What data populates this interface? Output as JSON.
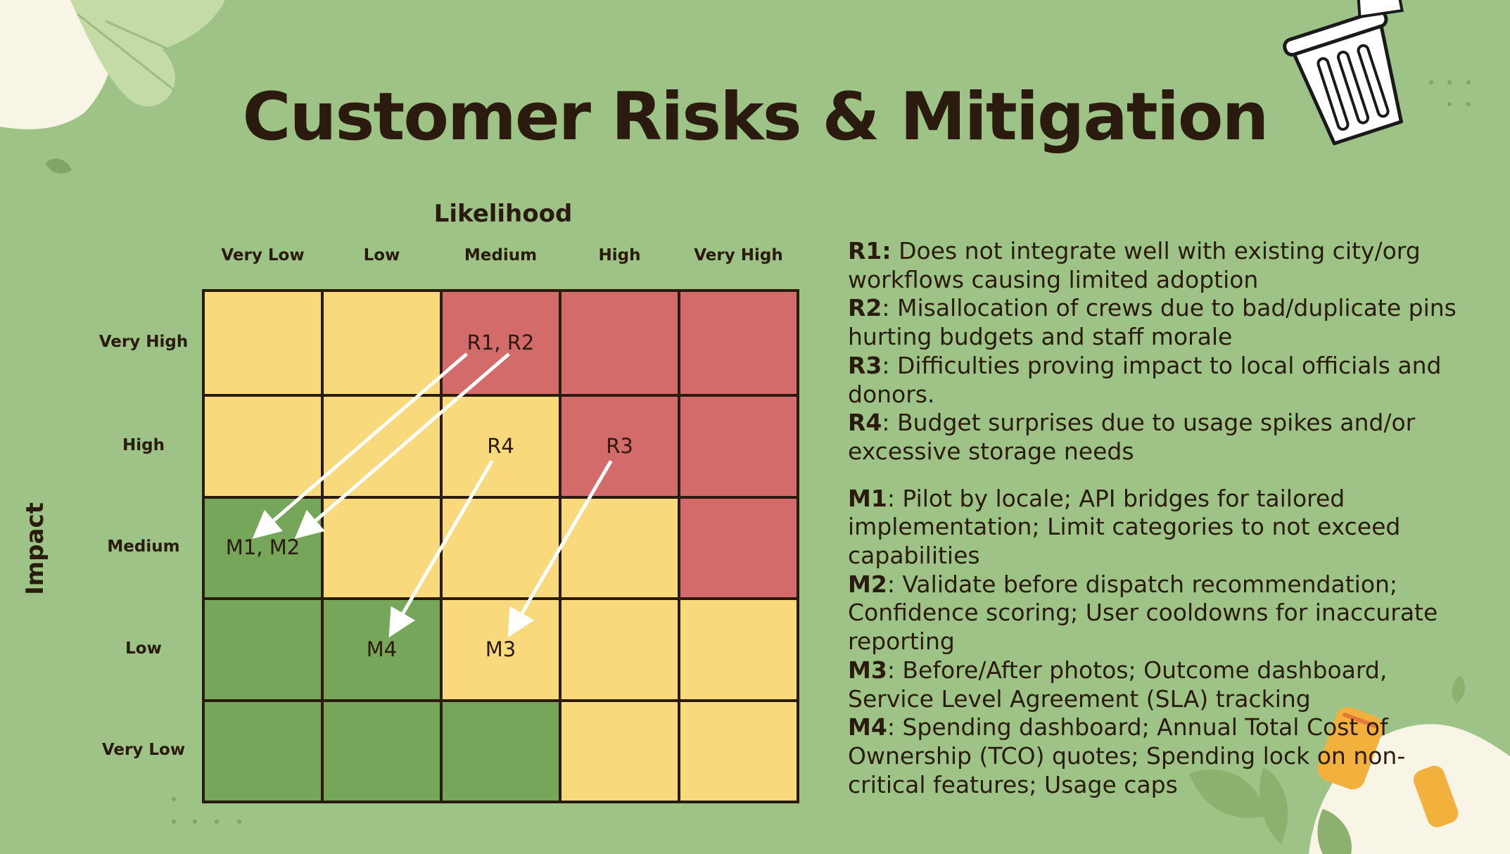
{
  "title": "Customer Risks & Mitigation",
  "matrix": {
    "x_axis_title": "Likelihood",
    "y_axis_title": "Impact",
    "columns": [
      "Very Low",
      "Low",
      "Medium",
      "High",
      "Very High"
    ],
    "rows": [
      "Very High",
      "High",
      "Medium",
      "Low",
      "Very Low"
    ],
    "cell_colors": [
      [
        "yellow",
        "yellow",
        "red",
        "red",
        "red"
      ],
      [
        "yellow",
        "yellow",
        "yellow",
        "red",
        "red"
      ],
      [
        "green",
        "yellow",
        "yellow",
        "yellow",
        "red"
      ],
      [
        "green",
        "green",
        "yellow",
        "yellow",
        "yellow"
      ],
      [
        "green",
        "green",
        "green",
        "yellow",
        "yellow"
      ]
    ],
    "palette": {
      "yellow": "#f8d97b",
      "red": "#d46b6b",
      "green": "#76a65a",
      "grid": "#2b1a0e"
    },
    "cell_labels": [
      {
        "text": "R1, R2",
        "row": 0,
        "col": 2
      },
      {
        "text": "R4",
        "row": 1,
        "col": 2
      },
      {
        "text": "R3",
        "row": 1,
        "col": 3
      },
      {
        "text": "M1, M2",
        "row": 2,
        "col": 0
      },
      {
        "text": "M4",
        "row": 3,
        "col": 1
      },
      {
        "text": "M3",
        "row": 3,
        "col": 2
      }
    ],
    "arrows": [
      {
        "from": "R1",
        "to": "M1"
      },
      {
        "from": "R2",
        "to": "M2"
      },
      {
        "from": "R4",
        "to": "M4"
      },
      {
        "from": "R3",
        "to": "M3"
      }
    ]
  },
  "risks": [
    {
      "code": "R1:",
      "text": " Does not integrate well with existing city/org workflows causing limited adoption"
    },
    {
      "code": "R2",
      "text": ": Misallocation of crews due to bad/duplicate pins hurting budgets and staff morale"
    },
    {
      "code": "R3",
      "text": ": Difficulties proving impact to local officials and donors."
    },
    {
      "code": "R4",
      "text": ": Budget surprises due to usage spikes and/or excessive storage needs"
    }
  ],
  "mitigations": [
    {
      "code": "M1",
      "text": ": Pilot by locale; API bridges for tailored implementation; Limit categories to not exceed capabilities"
    },
    {
      "code": "M2",
      "text": ": Validate before dispatch recommendation; Confidence scoring; User cooldowns for inaccurate reporting"
    },
    {
      "code": "M3",
      "text": ": Before/After photos; Outcome dashboard, Service Level Agreement (SLA) tracking"
    },
    {
      "code": "M4",
      "text": ": Spending dashboard; Annual Total Cost of Ownership (TCO) quotes; Spending lock on non-critical features; Usage caps"
    }
  ],
  "decor": {
    "icons": [
      "trash-bin-icon",
      "leaf-icon",
      "can-icon"
    ]
  }
}
